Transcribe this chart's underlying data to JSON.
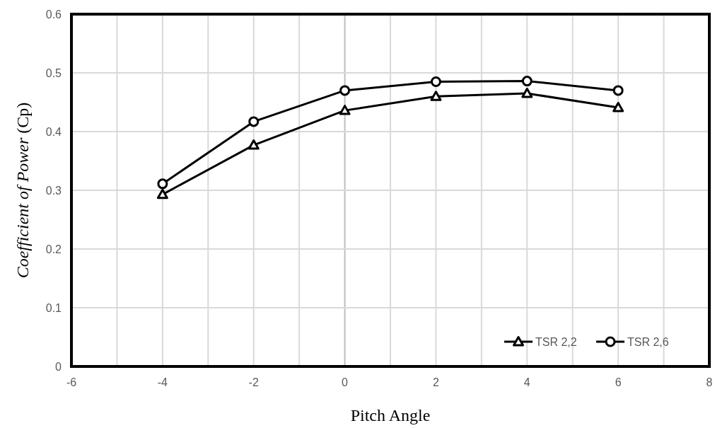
{
  "chart_data": {
    "type": "line",
    "xlabel": "Pitch Angle",
    "ylabel": "Coefficient of Power (Cp)",
    "x": [
      -4,
      -2,
      0,
      2,
      4,
      6
    ],
    "series": [
      {
        "name": "TSR 2,2",
        "color": "#000000",
        "marker": "triangle",
        "values": [
          0.293,
          0.377,
          0.436,
          0.46,
          0.465,
          0.441
        ]
      },
      {
        "name": "TSR 2,6",
        "color": "#000000",
        "marker": "circle",
        "values": [
          0.311,
          0.417,
          0.47,
          0.485,
          0.486,
          0.47
        ]
      }
    ],
    "xlim": [
      -6,
      8
    ],
    "xticks": [
      -6,
      {
        "value": -5,
        "label": null
      },
      -4,
      {
        "value": -3,
        "label": null
      },
      -2,
      {
        "value": -1,
        "label": null
      },
      0,
      {
        "value": 1,
        "label": null
      },
      2,
      {
        "value": 3,
        "label": null
      },
      4,
      {
        "value": 5,
        "label": null
      },
      6,
      {
        "value": 7,
        "label": null
      },
      8
    ],
    "ylim": [
      0,
      0.6
    ],
    "yticks": [
      0,
      0.1,
      0.2,
      0.3,
      0.4,
      0.5,
      0.6
    ],
    "grid": true,
    "legend": "bottom right",
    "line_style": "solid"
  }
}
